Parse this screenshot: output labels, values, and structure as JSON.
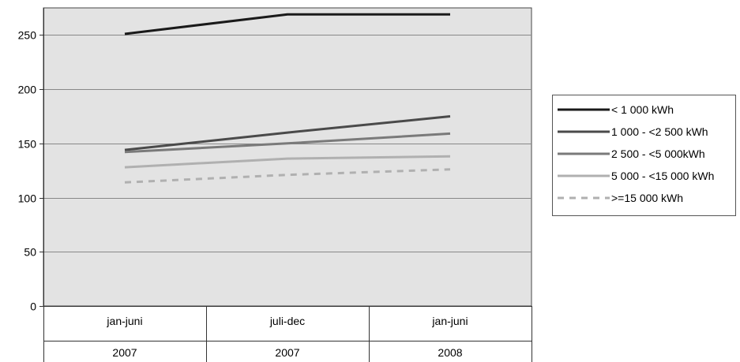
{
  "chart_data": {
    "type": "line",
    "title": "",
    "xlabel": "",
    "ylabel": "",
    "ylim": [
      0,
      275
    ],
    "yticks": [
      0,
      50,
      100,
      150,
      200,
      250
    ],
    "grid": true,
    "legend_position": "right",
    "categories": [
      {
        "period": "jan-juni",
        "year": "2007"
      },
      {
        "period": "juli-dec",
        "year": "2007"
      },
      {
        "period": "jan-juni",
        "year": "2008"
      }
    ],
    "series": [
      {
        "name": "< 1 000 kWh",
        "values": [
          251,
          269,
          269
        ],
        "color": "#1a1a1a",
        "dash": "solid"
      },
      {
        "name": "1 000 - <2 500 kWh",
        "values": [
          144,
          160,
          175
        ],
        "color": "#4a4a4a",
        "dash": "solid"
      },
      {
        "name": "2 500 - <5 000kWh",
        "values": [
          142,
          150,
          159
        ],
        "color": "#7a7a7a",
        "dash": "solid"
      },
      {
        "name": "5 000 - <15 000 kWh",
        "values": [
          128,
          136,
          138
        ],
        "color": "#b0b0b0",
        "dash": "solid"
      },
      {
        "name": ">=15 000 kWh",
        "values": [
          114,
          121,
          126
        ],
        "color": "#b0b0b0",
        "dash": "dashed"
      }
    ]
  },
  "colors": {
    "plot_background": "#e3e3e3",
    "gridline": "#888888"
  }
}
